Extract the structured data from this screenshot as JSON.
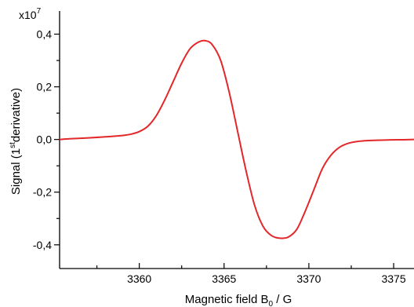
{
  "chart_data": {
    "type": "line",
    "xlabel": "Magnetic field B",
    "xlabel_subscript": "0",
    "xlabel_unit": " / G",
    "ylabel_prefix": "Signal (1",
    "ylabel_superscript": "st",
    "ylabel_suffix": "derivative)",
    "y_multiplier_base": "x10",
    "y_multiplier_exponent": "7",
    "xlim": [
      3355.3,
      3376.2
    ],
    "ylim": [
      -0.49,
      0.47
    ],
    "x_ticks": [
      3360,
      3365,
      3370,
      3375
    ],
    "x_tick_labels": [
      "3360",
      "3365",
      "3370",
      "3375"
    ],
    "x_minor_ticks": [
      3357.5,
      3362.5,
      3367.5,
      3372.5
    ],
    "y_ticks": [
      -0.4,
      -0.2,
      0.0,
      0.2,
      0.4
    ],
    "y_tick_labels": [
      "-0,4",
      "-0,2",
      "0,0",
      "0,2",
      "0,4"
    ],
    "y_minor_ticks": [
      -0.3,
      -0.1,
      0.1,
      0.3
    ],
    "grid": false,
    "series": [
      {
        "color": "#e3272a",
        "x": [
          3355.3,
          3356.0,
          3357.0,
          3358.0,
          3359.0,
          3359.5,
          3360.0,
          3360.5,
          3361.0,
          3361.5,
          3362.0,
          3362.5,
          3363.0,
          3363.5,
          3363.9,
          3364.3,
          3364.8,
          3365.3,
          3365.8,
          3366.3,
          3366.8,
          3367.3,
          3367.8,
          3368.3,
          3368.8,
          3369.3,
          3369.8,
          3370.3,
          3370.8,
          3371.3,
          3371.8,
          3372.3,
          3372.8,
          3373.5,
          3374.5,
          3375.5,
          3376.2
        ],
        "y": [
          0.0,
          0.003,
          0.006,
          0.01,
          0.015,
          0.02,
          0.03,
          0.05,
          0.09,
          0.15,
          0.22,
          0.29,
          0.345,
          0.37,
          0.375,
          0.36,
          0.3,
          0.18,
          0.03,
          -0.12,
          -0.25,
          -0.33,
          -0.365,
          -0.375,
          -0.37,
          -0.34,
          -0.27,
          -0.19,
          -0.11,
          -0.06,
          -0.03,
          -0.015,
          -0.008,
          -0.004,
          -0.002,
          -0.001,
          0.0
        ]
      }
    ]
  }
}
